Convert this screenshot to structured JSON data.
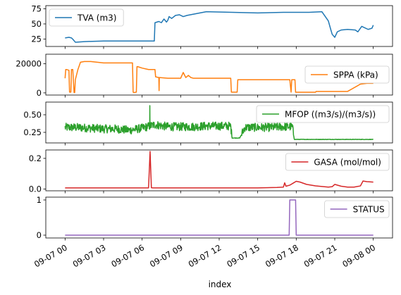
{
  "chart_data": {
    "type": "line",
    "xlabel": "index",
    "x_ticks": [
      "09-07 00",
      "09-07 03",
      "09-07 06",
      "09-07 09",
      "09-07 12",
      "09-07 15",
      "09-07 18",
      "09-07 21",
      "09-08 00"
    ],
    "x_range_hours": [
      -1.5,
      25.5
    ],
    "panels": [
      {
        "series_name": "TVA (m3)",
        "color": "#1f77b4",
        "legend_loc": "upper left",
        "ylim": [
          13,
          80
        ],
        "yticks": [
          25,
          50,
          75
        ],
        "ytick_labels": [
          "25",
          "50",
          "75"
        ],
        "x_hours": [
          0,
          0.3,
          0.5,
          0.6,
          0.8,
          1.5,
          3,
          5,
          6.95,
          7.0,
          7.3,
          7.5,
          7.7,
          7.9,
          8.0,
          8.1,
          8.3,
          8.6,
          8.9,
          9.2,
          9.5,
          11,
          13,
          15,
          17,
          18,
          19,
          20,
          20.5,
          20.7,
          20.8,
          21.0,
          21.2,
          21.5,
          22,
          22.6,
          22.8,
          23.1,
          23.3,
          23.6,
          23.9,
          24.0
        ],
        "values": [
          27,
          28,
          27,
          25,
          20,
          21,
          22,
          22,
          22,
          52,
          54,
          52,
          58,
          53,
          56,
          62,
          59,
          64,
          65,
          62,
          64,
          70,
          69,
          68,
          69,
          69,
          69,
          70,
          55,
          40,
          33,
          28,
          37,
          40,
          41,
          40,
          37,
          46,
          44,
          41,
          43,
          48
        ]
      },
      {
        "series_name": "SPPA (kPa)",
        "color": "#ff7f0e",
        "legend_loc": "center right",
        "ylim": [
          -1500,
          26500
        ],
        "yticks": [
          0,
          20000
        ],
        "ytick_labels": [
          "0",
          "20000"
        ],
        "x_hours": [
          0,
          0.05,
          0.1,
          0.3,
          0.35,
          0.45,
          0.5,
          0.6,
          0.7,
          0.75,
          0.8,
          1.0,
          1.2,
          1.5,
          2,
          3,
          4,
          5,
          5.25,
          5.3,
          5.35,
          5.55,
          5.6,
          5.65,
          6,
          6.5,
          7.0,
          7.05,
          7.3,
          7.32,
          7.34,
          8,
          9,
          9.2,
          9.4,
          9.6,
          9.8,
          10,
          11,
          12,
          12.9,
          12.95,
          13.4,
          13.45,
          14,
          15,
          16,
          17,
          17.5,
          17.6,
          17.65,
          17.9,
          17.95,
          19.5,
          19.55,
          20.8,
          21,
          22,
          23,
          23.5,
          24
        ],
        "values": [
          10000,
          16000,
          16000,
          15500,
          500,
          500,
          16000,
          16000,
          200,
          200,
          9000,
          16000,
          21000,
          21500,
          21500,
          20500,
          20500,
          20500,
          20500,
          500,
          200,
          500,
          18000,
          18000,
          17000,
          16000,
          16000,
          11000,
          10500,
          1500,
          10500,
          10000,
          10000,
          14000,
          10500,
          12000,
          10500,
          10000,
          10000,
          10000,
          10000,
          500,
          500,
          9000,
          9000,
          9000,
          9000,
          9000,
          9000,
          500,
          9000,
          9000,
          400,
          400,
          1000,
          1000,
          1000,
          1000,
          6000,
          6500,
          6500
        ]
      },
      {
        "series_name": "MFOP ((m3/s)/(m3/s))",
        "color": "#2ca02c",
        "legend_loc": "upper right",
        "ylim": [
          0.1,
          0.68
        ],
        "yticks": [
          0.25,
          0.5
        ],
        "ytick_labels": [
          "0.25",
          "0.50"
        ],
        "base_x_hours": [
          0,
          1,
          2,
          3,
          4,
          5,
          6,
          7,
          8,
          9,
          10,
          11,
          12,
          12.9,
          13.0,
          13.6,
          14,
          15,
          16,
          17,
          17.7,
          17.85,
          18,
          20,
          22,
          24
        ],
        "base_values": [
          0.32,
          0.32,
          0.31,
          0.3,
          0.3,
          0.28,
          0.31,
          0.36,
          0.33,
          0.33,
          0.33,
          0.34,
          0.34,
          0.34,
          0.17,
          0.17,
          0.32,
          0.32,
          0.32,
          0.33,
          0.33,
          0.15,
          0.15,
          0.15,
          0.15,
          0.15
        ],
        "noise_amplitude": 0.06,
        "spike_x_hours": 6.6,
        "spike_value": 0.63
      },
      {
        "series_name": "GASA (mol/mol)",
        "color": "#d62728",
        "legend_loc": "upper right",
        "ylim": [
          -0.012,
          0.255
        ],
        "yticks": [
          0,
          0.2
        ],
        "ytick_labels": [
          "0.0",
          "0.2"
        ],
        "x_hours": [
          0,
          6.5,
          6.62,
          6.72,
          6.85,
          9,
          12,
          15,
          16.5,
          17.0,
          17.1,
          17.2,
          17.5,
          17.8,
          18.0,
          18.3,
          18.8,
          19.5,
          20.5,
          20.8,
          21.0,
          21.5,
          22.0,
          22.5,
          23.0,
          23.2,
          23.5,
          24.0
        ],
        "values": [
          0.007,
          0.007,
          0.245,
          0.008,
          0.007,
          0.007,
          0.007,
          0.007,
          0.01,
          0.012,
          0.04,
          0.018,
          0.025,
          0.04,
          0.05,
          0.045,
          0.03,
          0.02,
          0.012,
          0.015,
          0.03,
          0.018,
          0.012,
          0.012,
          0.02,
          0.052,
          0.048,
          0.045
        ]
      },
      {
        "series_name": "STATUS",
        "color": "#9467bd",
        "legend_loc": "upper right",
        "ylim": [
          -0.08,
          1.08
        ],
        "yticks": [
          0,
          1
        ],
        "ytick_labels": [
          "0",
          "1"
        ],
        "x_hours": [
          0,
          17.45,
          17.5,
          17.95,
          18.0,
          24
        ],
        "values": [
          0,
          0,
          1,
          1,
          0,
          0
        ]
      }
    ]
  }
}
